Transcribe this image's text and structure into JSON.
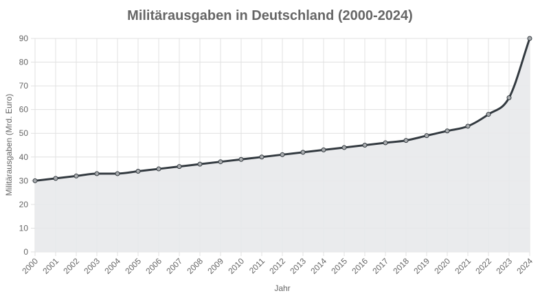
{
  "chart_data": {
    "type": "line",
    "title": "Militärausgaben in Deutschland (2000-2024)",
    "xlabel": "Jahr",
    "ylabel": "Militärausgaben (Mrd. Euro)",
    "ylim": [
      0,
      90
    ],
    "yticks": [
      0,
      10,
      20,
      30,
      40,
      50,
      60,
      70,
      80,
      90
    ],
    "grid": true,
    "fill": true,
    "smoothed": true,
    "categories": [
      "2000",
      "2001",
      "2002",
      "2003",
      "2004",
      "2005",
      "2006",
      "2007",
      "2008",
      "2009",
      "2010",
      "2011",
      "2012",
      "2013",
      "2014",
      "2015",
      "2016",
      "2017",
      "2018",
      "2019",
      "2020",
      "2021",
      "2022",
      "2023",
      "2024"
    ],
    "values": [
      30,
      31,
      32,
      33,
      33,
      34,
      35,
      36,
      37,
      38,
      39,
      40,
      41,
      42,
      43,
      44,
      45,
      46,
      47,
      49,
      51,
      53,
      58,
      65,
      90
    ],
    "colors": {
      "line": "#333a40",
      "fill": "#e8e9eb",
      "grid": "#e0e0e0",
      "text": "#666666"
    }
  }
}
